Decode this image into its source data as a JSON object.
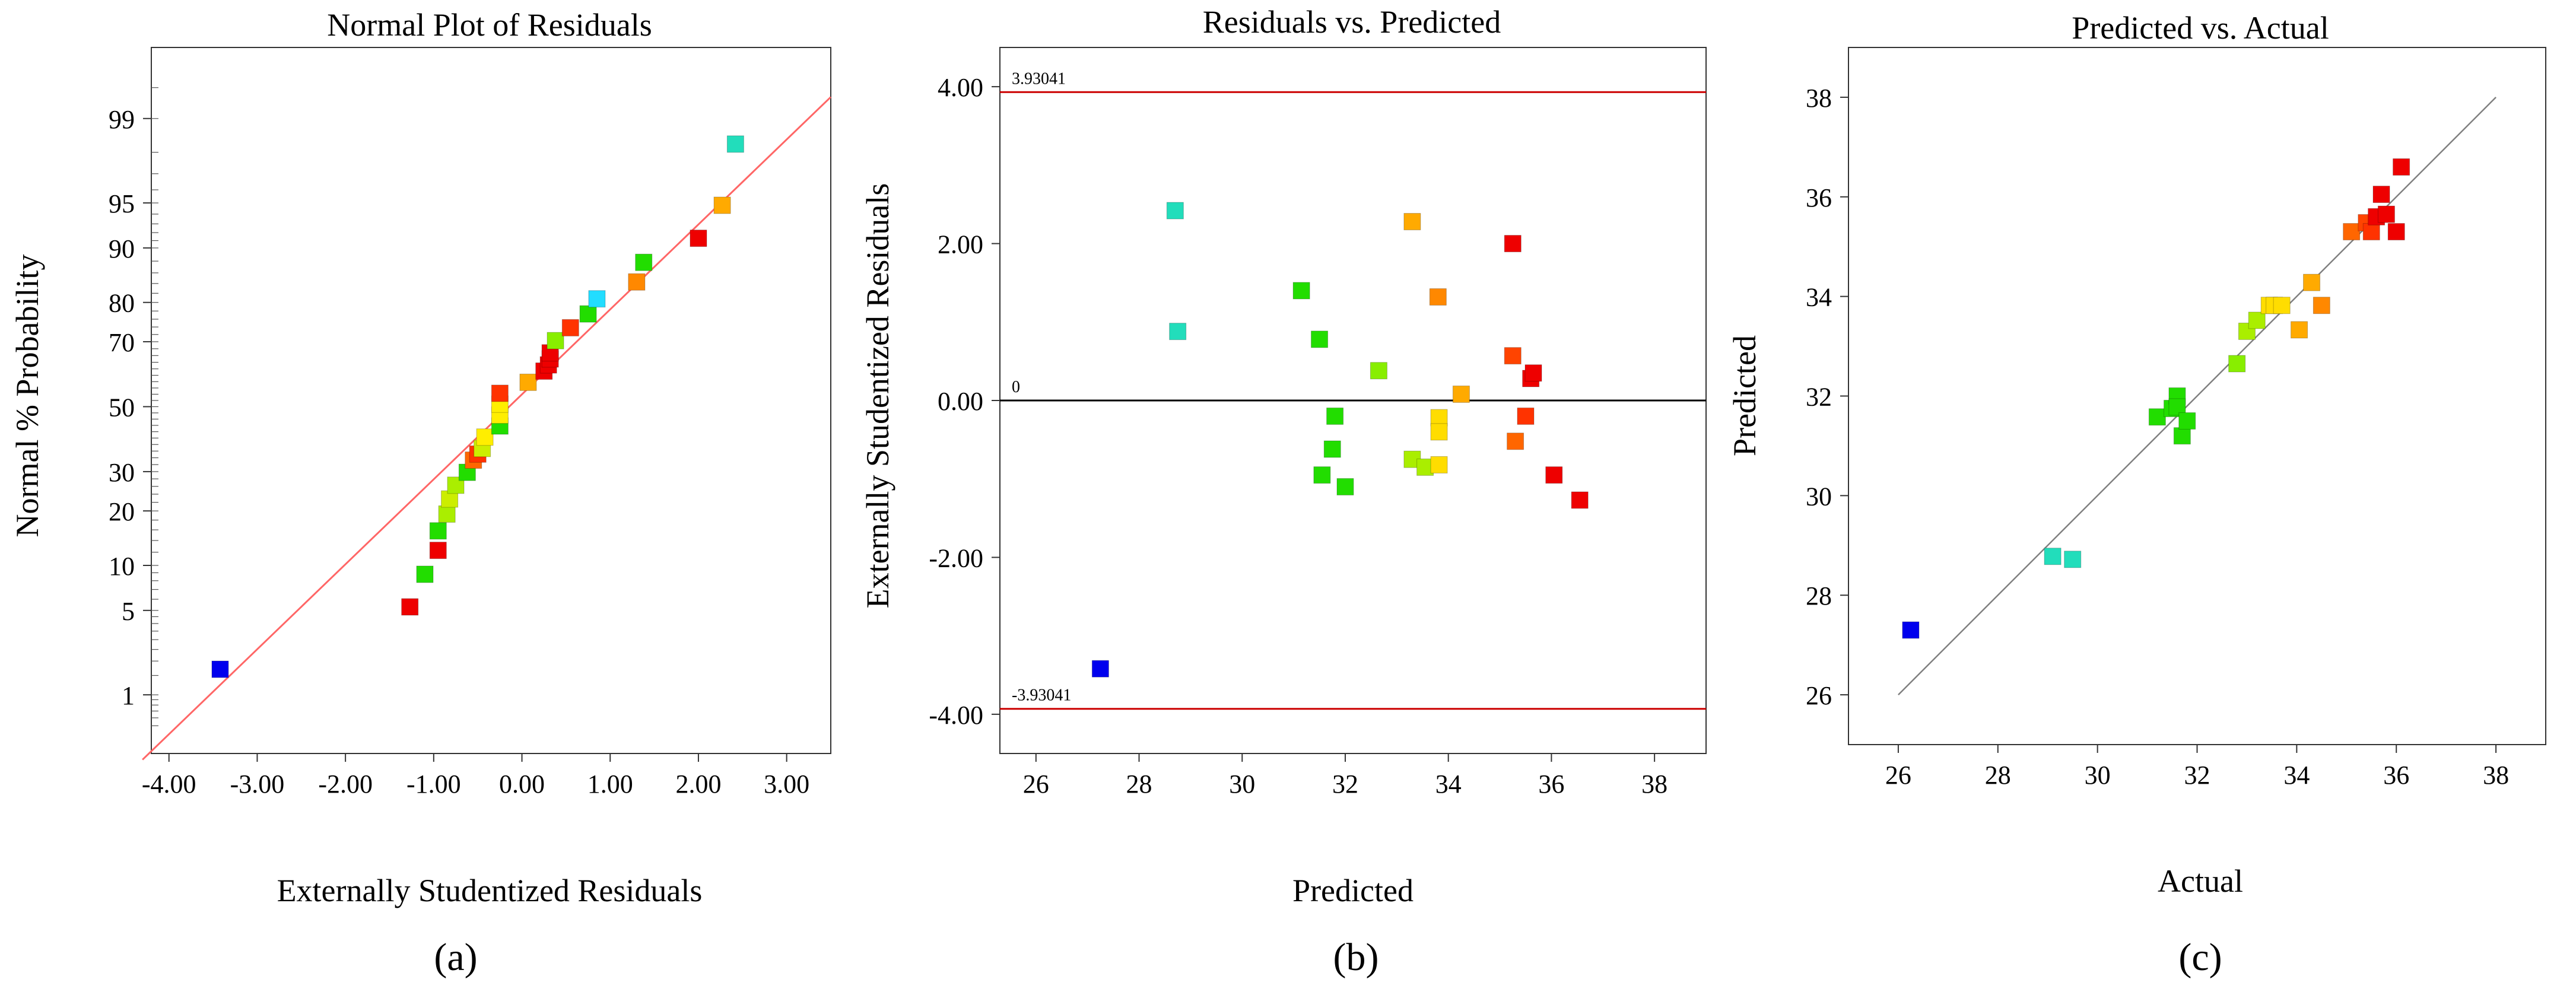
{
  "chart_data": [
    {
      "id": "a",
      "type": "scatter",
      "title": "Normal Plot of Residuals",
      "xlabel": "Externally Studentized Residuals",
      "ylabel": "Normal % Probability",
      "panel_label": "(a)",
      "xlim": [
        -4.2,
        3.5
      ],
      "xticks": [
        -4,
        -3,
        -2,
        -1,
        0,
        1,
        2,
        3
      ],
      "xtick_labels": [
        "-4.00",
        "-3.00",
        "-2.00",
        "-1.00",
        "0.00",
        "1.00",
        "2.00",
        "3.00"
      ],
      "ylim_probit": [
        -2.8,
        2.9
      ],
      "yticks": [
        1,
        5,
        10,
        20,
        30,
        50,
        70,
        80,
        90,
        95,
        99
      ],
      "ytick_labels": [
        "1",
        "5",
        "10",
        "20",
        "30",
        "50",
        "70",
        "80",
        "90",
        "95",
        "99"
      ],
      "reference_line": {
        "color": "#ff6666",
        "from": [
          -4.3,
          -2.85
        ],
        "to": [
          3.5,
          2.5
        ]
      },
      "points": [
        {
          "x": -3.42,
          "y": 1.7,
          "color": "#0000ee"
        },
        {
          "x": -1.27,
          "y": 5.3,
          "color": "#ee0000"
        },
        {
          "x": -1.1,
          "y": 8.8,
          "color": "#22dd00"
        },
        {
          "x": -0.95,
          "y": 12.3,
          "color": "#ee0000"
        },
        {
          "x": -0.95,
          "y": 15.8,
          "color": "#22dd00"
        },
        {
          "x": -0.85,
          "y": 19.3,
          "color": "#aaee00"
        },
        {
          "x": -0.82,
          "y": 22.8,
          "color": "#ccee00"
        },
        {
          "x": -0.75,
          "y": 26.3,
          "color": "#aaee00"
        },
        {
          "x": -0.62,
          "y": 29.8,
          "color": "#22dd00"
        },
        {
          "x": -0.55,
          "y": 33.3,
          "color": "#ff6600"
        },
        {
          "x": -0.5,
          "y": 35.1,
          "color": "#ff3300"
        },
        {
          "x": -0.45,
          "y": 36.8,
          "color": "#ccee00"
        },
        {
          "x": -0.42,
          "y": 40.3,
          "color": "#ffee00"
        },
        {
          "x": -0.25,
          "y": 43.8,
          "color": "#22dd00"
        },
        {
          "x": -0.25,
          "y": 47.3,
          "color": "#ffee00"
        },
        {
          "x": -0.25,
          "y": 50.8,
          "color": "#ffee00"
        },
        {
          "x": -0.25,
          "y": 54.3,
          "color": "#ff3300"
        },
        {
          "x": 0.07,
          "y": 57.8,
          "color": "#ffaa00"
        },
        {
          "x": 0.25,
          "y": 61.3,
          "color": "#ee0000"
        },
        {
          "x": 0.3,
          "y": 63.2,
          "color": "#ee0000"
        },
        {
          "x": 0.32,
          "y": 65.0,
          "color": "#ee0000"
        },
        {
          "x": 0.32,
          "y": 66.8,
          "color": "#ee0000"
        },
        {
          "x": 0.38,
          "y": 70.3,
          "color": "#88ee00"
        },
        {
          "x": 0.55,
          "y": 73.8,
          "color": "#ff3300"
        },
        {
          "x": 0.75,
          "y": 77.3,
          "color": "#22dd00"
        },
        {
          "x": 0.85,
          "y": 80.8,
          "color": "#22ddff"
        },
        {
          "x": 1.3,
          "y": 84.3,
          "color": "#ff8800"
        },
        {
          "x": 1.38,
          "y": 87.8,
          "color": "#22dd00"
        },
        {
          "x": 2.0,
          "y": 91.3,
          "color": "#ee0000"
        },
        {
          "x": 2.27,
          "y": 94.8,
          "color": "#ffaa00"
        },
        {
          "x": 2.42,
          "y": 98.3,
          "color": "#22ddbb"
        }
      ]
    },
    {
      "id": "b",
      "type": "scatter",
      "title": "Residuals vs. Predicted",
      "xlabel": "Predicted",
      "ylabel": "Externally Studentized Residuals",
      "panel_label": "(b)",
      "xlim": [
        25.3,
        39.0
      ],
      "ylim": [
        -4.5,
        4.5
      ],
      "xticks": [
        26,
        28,
        30,
        32,
        34,
        36,
        38
      ],
      "xtick_labels": [
        "26",
        "28",
        "30",
        "32",
        "34",
        "36",
        "38"
      ],
      "yticks": [
        -4,
        -2,
        0,
        2,
        4
      ],
      "ytick_labels": [
        "-4.00",
        "-2.00",
        "0.00",
        "2.00",
        "4.00"
      ],
      "limit_lines": [
        {
          "y": 3.93041,
          "label": "3.93041",
          "color": "#cc0000"
        },
        {
          "y": -3.93041,
          "label": "-3.93041",
          "color": "#cc0000"
        }
      ],
      "zero_line": {
        "y": 0,
        "label": "0",
        "color": "#000000"
      },
      "points": [
        {
          "x": 27.25,
          "y": -3.42,
          "color": "#0000ee"
        },
        {
          "x": 28.7,
          "y": 2.42,
          "color": "#22ddbb"
        },
        {
          "x": 28.75,
          "y": 0.88,
          "color": "#22ddbb"
        },
        {
          "x": 31.15,
          "y": 1.4,
          "color": "#22dd00"
        },
        {
          "x": 31.5,
          "y": 0.78,
          "color": "#22dd00"
        },
        {
          "x": 31.55,
          "y": -0.95,
          "color": "#22dd00"
        },
        {
          "x": 31.75,
          "y": -0.62,
          "color": "#22dd00"
        },
        {
          "x": 31.8,
          "y": -0.2,
          "color": "#22dd00"
        },
        {
          "x": 32.0,
          "y": -1.1,
          "color": "#22dd00"
        },
        {
          "x": 32.65,
          "y": 0.38,
          "color": "#88ee00"
        },
        {
          "x": 33.3,
          "y": 2.28,
          "color": "#ffaa00"
        },
        {
          "x": 33.3,
          "y": -0.75,
          "color": "#aaee00"
        },
        {
          "x": 33.55,
          "y": -0.85,
          "color": "#aaee00"
        },
        {
          "x": 33.8,
          "y": 1.32,
          "color": "#ff8800"
        },
        {
          "x": 33.82,
          "y": -0.22,
          "color": "#ffdd00"
        },
        {
          "x": 33.82,
          "y": -0.4,
          "color": "#ffdd00"
        },
        {
          "x": 33.82,
          "y": -0.82,
          "color": "#ffdd00"
        },
        {
          "x": 34.25,
          "y": 0.08,
          "color": "#ffaa00"
        },
        {
          "x": 35.25,
          "y": 2.0,
          "color": "#ee0000"
        },
        {
          "x": 35.25,
          "y": 0.57,
          "color": "#ff4400"
        },
        {
          "x": 35.3,
          "y": -0.52,
          "color": "#ff6600"
        },
        {
          "x": 35.5,
          "y": -0.2,
          "color": "#ff3300"
        },
        {
          "x": 35.6,
          "y": 0.28,
          "color": "#ee0000"
        },
        {
          "x": 35.65,
          "y": 0.35,
          "color": "#ee0000"
        },
        {
          "x": 36.05,
          "y": -0.95,
          "color": "#ee0000"
        },
        {
          "x": 36.55,
          "y": -1.27,
          "color": "#ee0000"
        }
      ]
    },
    {
      "id": "c",
      "type": "scatter",
      "title": "Predicted vs. Actual",
      "xlabel": "Actual",
      "ylabel": "Predicted",
      "panel_label": "(c)",
      "xlim": [
        25.0,
        39.0
      ],
      "ylim": [
        25.0,
        39.0
      ],
      "xticks": [
        26,
        28,
        30,
        32,
        34,
        36,
        38
      ],
      "xtick_labels": [
        "26",
        "28",
        "30",
        "32",
        "34",
        "36",
        "38"
      ],
      "yticks": [
        26,
        28,
        30,
        32,
        34,
        36,
        38
      ],
      "ytick_labels": [
        "26",
        "28",
        "30",
        "32",
        "34",
        "36",
        "38"
      ],
      "reference_line": {
        "color": "#808080",
        "from": [
          26,
          26
        ],
        "to": [
          38,
          38
        ]
      },
      "points": [
        {
          "x": 26.25,
          "y": 27.3,
          "color": "#0000ee"
        },
        {
          "x": 29.1,
          "y": 28.78,
          "color": "#22ddbb"
        },
        {
          "x": 29.5,
          "y": 28.72,
          "color": "#22ddbb"
        },
        {
          "x": 31.2,
          "y": 31.58,
          "color": "#22dd00"
        },
        {
          "x": 31.5,
          "y": 31.75,
          "color": "#22dd00"
        },
        {
          "x": 31.6,
          "y": 32.0,
          "color": "#22dd00"
        },
        {
          "x": 31.6,
          "y": 31.78,
          "color": "#22dd00"
        },
        {
          "x": 31.7,
          "y": 31.2,
          "color": "#22dd00"
        },
        {
          "x": 31.8,
          "y": 31.5,
          "color": "#22dd00"
        },
        {
          "x": 32.8,
          "y": 32.65,
          "color": "#88ee00"
        },
        {
          "x": 33.0,
          "y": 33.3,
          "color": "#aaee00"
        },
        {
          "x": 33.2,
          "y": 33.52,
          "color": "#aaee00"
        },
        {
          "x": 33.45,
          "y": 33.82,
          "color": "#ffdd00"
        },
        {
          "x": 33.55,
          "y": 33.82,
          "color": "#ffdd00"
        },
        {
          "x": 33.7,
          "y": 33.82,
          "color": "#ffdd00"
        },
        {
          "x": 34.05,
          "y": 33.33,
          "color": "#ffaa00"
        },
        {
          "x": 34.3,
          "y": 34.28,
          "color": "#ffaa00"
        },
        {
          "x": 34.5,
          "y": 33.82,
          "color": "#ff8800"
        },
        {
          "x": 35.1,
          "y": 35.3,
          "color": "#ff6600"
        },
        {
          "x": 35.4,
          "y": 35.48,
          "color": "#ff4400"
        },
        {
          "x": 35.5,
          "y": 35.3,
          "color": "#ff3300"
        },
        {
          "x": 35.6,
          "y": 35.6,
          "color": "#ee0000"
        },
        {
          "x": 35.7,
          "y": 36.05,
          "color": "#ee0000"
        },
        {
          "x": 35.8,
          "y": 35.65,
          "color": "#ee0000"
        },
        {
          "x": 36.0,
          "y": 35.3,
          "color": "#ee0000"
        },
        {
          "x": 36.1,
          "y": 36.6,
          "color": "#ee0000"
        }
      ]
    }
  ]
}
